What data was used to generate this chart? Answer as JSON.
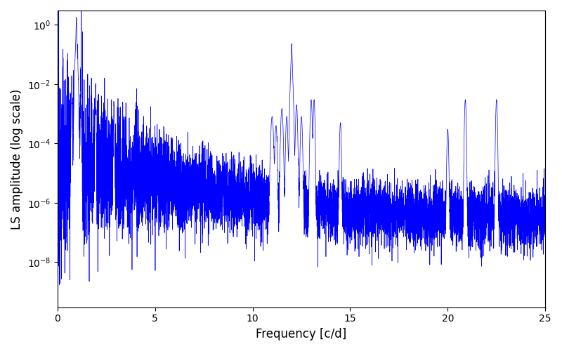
{
  "title": "",
  "xlabel": "Frequency [c/d]",
  "ylabel": "LS amplitude (log scale)",
  "line_color": "#0000ff",
  "line_width": 0.5,
  "xlim": [
    0,
    25
  ],
  "ylim": [
    3e-10,
    3.0
  ],
  "yticks": [
    1e-08,
    1e-06,
    0.0001,
    0.01,
    1.0
  ],
  "xticks": [
    0,
    5,
    10,
    15,
    20,
    25
  ],
  "figsize": [
    8.0,
    5.0
  ],
  "dpi": 100,
  "bg_color": "#ffffff",
  "seed": 12345,
  "n_points": 8000,
  "freq_max": 25.0
}
